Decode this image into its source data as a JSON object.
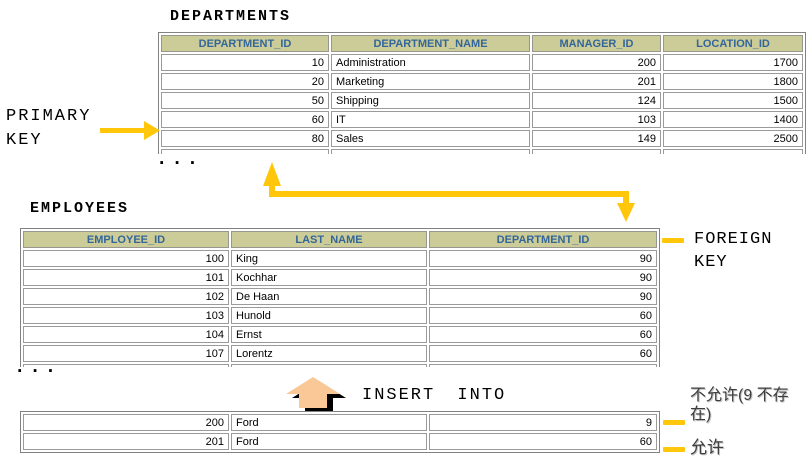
{
  "departments": {
    "title": "DEPARTMENTS",
    "columns": [
      "DEPARTMENT_ID",
      "DEPARTMENT_NAME",
      "MANAGER_ID",
      "LOCATION_ID"
    ],
    "rows": [
      [
        "10",
        "Administration",
        "200",
        "1700"
      ],
      [
        "20",
        "Marketing",
        "201",
        "1800"
      ],
      [
        "50",
        "Shipping",
        "124",
        "1500"
      ],
      [
        "60",
        "IT",
        "103",
        "1400"
      ],
      [
        "80",
        "Sales",
        "149",
        "2500"
      ]
    ],
    "ellipsis": "..."
  },
  "employees": {
    "title": "EMPLOYEES",
    "columns": [
      "EMPLOYEE_ID",
      "LAST_NAME",
      "DEPARTMENT_ID"
    ],
    "rows": [
      [
        "100",
        "King",
        "90"
      ],
      [
        "101",
        "Kochhar",
        "90"
      ],
      [
        "102",
        "De Haan",
        "90"
      ],
      [
        "103",
        "Hunold",
        "60"
      ],
      [
        "104",
        "Ernst",
        "60"
      ],
      [
        "107",
        "Lorentz",
        "60"
      ]
    ],
    "ellipsis": "..."
  },
  "insert_table": {
    "rows": [
      [
        "200",
        "Ford",
        "9"
      ],
      [
        "201",
        "Ford",
        "60"
      ]
    ]
  },
  "labels": {
    "primary_key": [
      "PRIMARY",
      "KEY"
    ],
    "foreign_key": [
      "FOREIGN",
      "KEY"
    ],
    "insert_into": "INSERT INTO",
    "not_allowed": "不允许(9 不存在)",
    "allowed": "允许"
  },
  "colors": {
    "accent_yellow": "#FFC60A",
    "header_background": "#CCCC99",
    "header_text": "#336699",
    "insert_arrow_fill": "#F9C896",
    "insert_arrow_shadow": "#000000"
  }
}
